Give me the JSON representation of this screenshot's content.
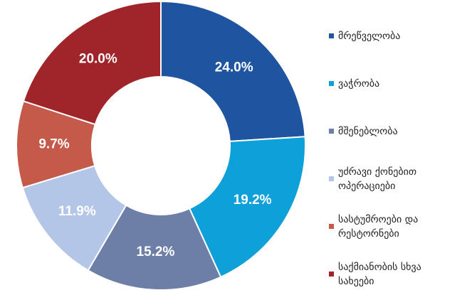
{
  "chart_data": {
    "type": "donut",
    "categories": [
      "მრეწველობა",
      "ვაჭრობა",
      "მშენებლობა",
      "უძრავი ქონებით ოპერაციები",
      "სასტუმროები და რესტორნები",
      "საქმიანობის სხვა სახეები"
    ],
    "values": [
      24.0,
      19.2,
      15.2,
      11.9,
      9.7,
      20.0
    ],
    "value_labels": [
      "24.0%",
      "19.2%",
      "15.2%",
      "11.9%",
      "9.7%",
      "20.0%"
    ],
    "colors": [
      "#1f55a0",
      "#0ea0d8",
      "#6d7fa6",
      "#b4c6e7",
      "#c55a4a",
      "#a0252a"
    ],
    "legend": "right"
  }
}
